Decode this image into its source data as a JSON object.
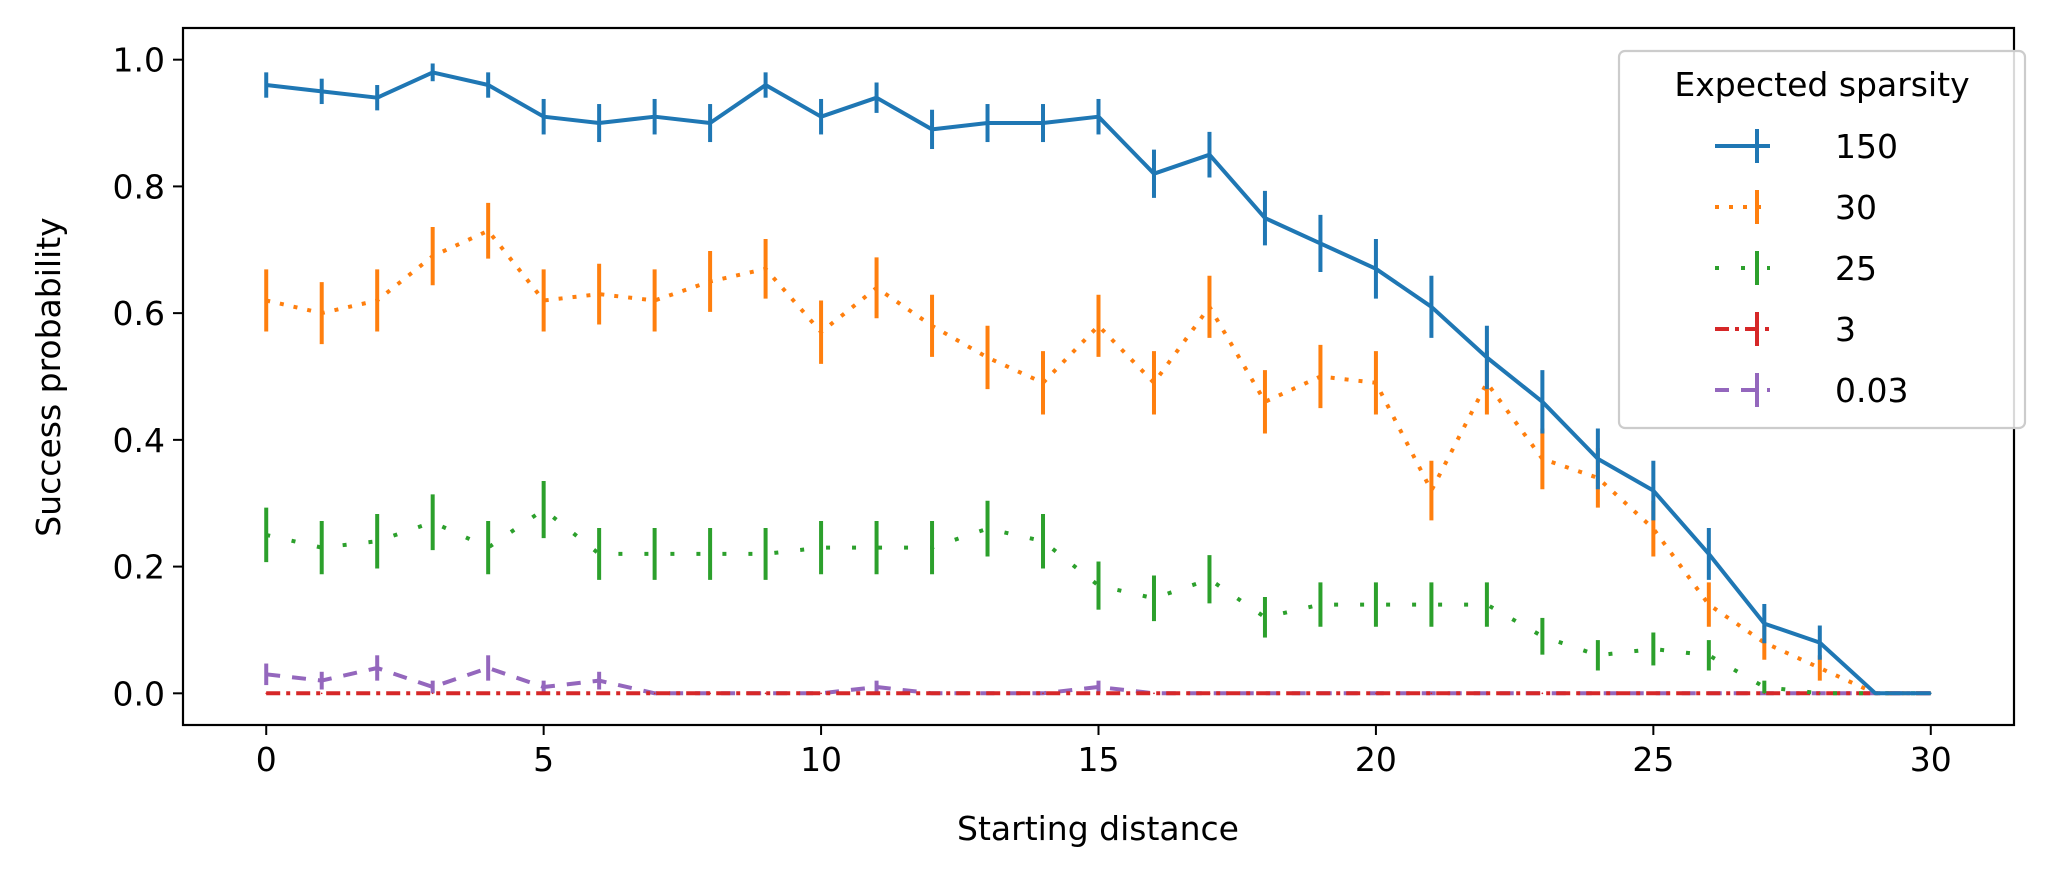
{
  "chart_data": {
    "type": "line",
    "title": "",
    "xlabel": "Starting distance",
    "ylabel": "Success probability",
    "xlim": [
      -1.5,
      31.5
    ],
    "ylim": [
      -0.05,
      1.05
    ],
    "x_ticks": [
      0,
      5,
      10,
      15,
      20,
      25,
      30
    ],
    "x_tick_labels": [
      "0",
      "5",
      "10",
      "15",
      "20",
      "25",
      "30"
    ],
    "y_ticks": [
      0.0,
      0.2,
      0.4,
      0.6,
      0.8,
      1.0
    ],
    "y_tick_labels": [
      "0.0",
      "0.2",
      "0.4",
      "0.6",
      "0.8",
      "1.0"
    ],
    "grid": false,
    "legend": {
      "title": "Expected sparsity",
      "position": "top-right"
    },
    "x": [
      0,
      1,
      2,
      3,
      4,
      5,
      6,
      7,
      8,
      9,
      10,
      11,
      12,
      13,
      14,
      15,
      16,
      17,
      18,
      19,
      20,
      21,
      22,
      23,
      24,
      25,
      26,
      27,
      28,
      29,
      30
    ],
    "series": [
      {
        "name": "150",
        "color": "#1f77b4",
        "linestyle": "solid",
        "values": [
          0.96,
          0.95,
          0.94,
          0.98,
          0.96,
          0.91,
          0.9,
          0.91,
          0.9,
          0.96,
          0.91,
          0.94,
          0.89,
          0.9,
          0.9,
          0.91,
          0.82,
          0.85,
          0.75,
          0.71,
          0.67,
          0.61,
          0.53,
          0.46,
          0.37,
          0.32,
          0.22,
          0.11,
          0.08,
          0.0,
          0.0
        ],
        "errors": [
          0.02,
          0.02,
          0.02,
          0.014,
          0.02,
          0.028,
          0.03,
          0.028,
          0.03,
          0.02,
          0.028,
          0.024,
          0.031,
          0.03,
          0.03,
          0.028,
          0.038,
          0.036,
          0.043,
          0.045,
          0.047,
          0.049,
          0.05,
          0.05,
          0.048,
          0.047,
          0.041,
          0.031,
          0.027,
          0.0,
          0.0
        ]
      },
      {
        "name": "30",
        "color": "#ff7f0e",
        "linestyle": "dotted",
        "values": [
          0.62,
          0.6,
          0.62,
          0.69,
          0.73,
          0.62,
          0.63,
          0.62,
          0.65,
          0.67,
          0.57,
          0.64,
          0.58,
          0.53,
          0.49,
          0.58,
          0.49,
          0.61,
          0.46,
          0.5,
          0.49,
          0.32,
          0.49,
          0.37,
          0.34,
          0.26,
          0.14,
          0.08,
          0.04,
          0.0,
          0.0
        ],
        "errors": [
          0.049,
          0.049,
          0.049,
          0.046,
          0.044,
          0.049,
          0.048,
          0.049,
          0.048,
          0.047,
          0.05,
          0.048,
          0.049,
          0.05,
          0.05,
          0.049,
          0.05,
          0.049,
          0.05,
          0.05,
          0.05,
          0.047,
          0.05,
          0.048,
          0.047,
          0.044,
          0.035,
          0.027,
          0.02,
          0.0,
          0.0
        ]
      },
      {
        "name": "25",
        "color": "#2ca02c",
        "linestyle": "densely-dotted",
        "values": [
          0.25,
          0.23,
          0.24,
          0.27,
          0.23,
          0.29,
          0.22,
          0.22,
          0.22,
          0.22,
          0.23,
          0.23,
          0.23,
          0.26,
          0.24,
          0.17,
          0.15,
          0.18,
          0.12,
          0.14,
          0.14,
          0.14,
          0.14,
          0.09,
          0.06,
          0.07,
          0.06,
          0.01,
          0.0,
          0.0,
          0.0
        ],
        "errors": [
          0.043,
          0.042,
          0.043,
          0.044,
          0.042,
          0.045,
          0.041,
          0.041,
          0.041,
          0.041,
          0.042,
          0.042,
          0.042,
          0.044,
          0.043,
          0.038,
          0.036,
          0.038,
          0.032,
          0.035,
          0.035,
          0.035,
          0.035,
          0.029,
          0.024,
          0.026,
          0.024,
          0.01,
          0.0,
          0.0,
          0.0
        ]
      },
      {
        "name": "3",
        "color": "#d62728",
        "linestyle": "dashdot",
        "values": [
          0.0,
          0.0,
          0.0,
          0.0,
          0.0,
          0.0,
          0.0,
          0.0,
          0.0,
          0.0,
          0.0,
          0.0,
          0.0,
          0.0,
          0.0,
          0.0,
          0.0,
          0.0,
          0.0,
          0.0,
          0.0,
          0.0,
          0.0,
          0.0,
          0.0,
          0.0,
          0.0,
          0.0,
          0.0,
          0.0,
          0.0
        ],
        "errors": [
          0,
          0,
          0,
          0,
          0,
          0,
          0,
          0,
          0,
          0,
          0,
          0,
          0,
          0,
          0,
          0,
          0,
          0,
          0,
          0,
          0,
          0,
          0,
          0,
          0,
          0,
          0,
          0,
          0,
          0,
          0
        ]
      },
      {
        "name": "0.03",
        "color": "#9467bd",
        "linestyle": "dashed",
        "values": [
          0.03,
          0.02,
          0.04,
          0.01,
          0.04,
          0.01,
          0.02,
          0.0,
          0.0,
          0.0,
          0.0,
          0.01,
          0.0,
          0.0,
          0.0,
          0.01,
          0.0,
          0.0,
          0.0,
          0.0,
          0.0,
          0.0,
          0.0,
          0.0,
          0.0,
          0.0,
          0.0,
          0.0,
          0.0,
          0.0,
          0.0
        ],
        "errors": [
          0.017,
          0.014,
          0.02,
          0.01,
          0.02,
          0.01,
          0.014,
          0,
          0,
          0,
          0,
          0.01,
          0,
          0,
          0,
          0.01,
          0,
          0,
          0,
          0,
          0,
          0,
          0,
          0,
          0,
          0,
          0,
          0,
          0,
          0,
          0
        ]
      }
    ]
  }
}
